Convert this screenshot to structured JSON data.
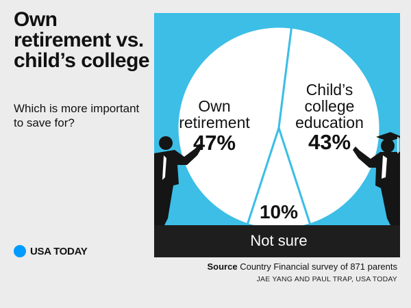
{
  "header": {
    "title": "Own retirement vs. child’s college",
    "subtitle": "Which is more important to save for?"
  },
  "chart_data": {
    "type": "pie",
    "slices": [
      {
        "label_lines": [
          "Own",
          "retirement"
        ],
        "value": 47,
        "value_label": "47%"
      },
      {
        "label_lines": [
          "Child’s",
          "college",
          "education"
        ],
        "value": 43,
        "value_label": "43%"
      },
      {
        "label_lines": [
          "Not sure"
        ],
        "value": 10,
        "value_label": "10%"
      }
    ],
    "colors": {
      "background": "#3cbee6",
      "slice": "#ffffff",
      "divider": "#3cbee6",
      "text": "#111111",
      "floor": "#1e1e1e",
      "floor_text": "#ffffff"
    },
    "icons": [
      "parent-silhouette-icon",
      "graduate-silhouette-icon"
    ]
  },
  "footer": {
    "brand": "USA TODAY",
    "source_label": "Source",
    "source_text": "Country Financial survey of 871 parents",
    "credit": "JAE YANG AND PAUL TRAP, USA TODAY"
  }
}
